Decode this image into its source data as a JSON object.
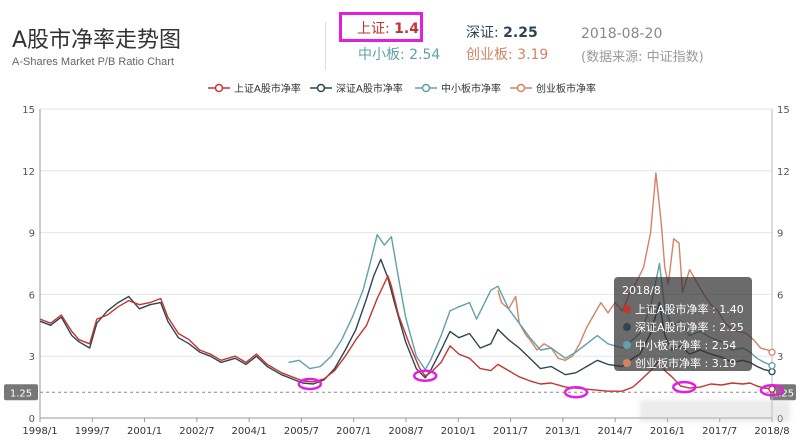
{
  "header": {
    "title": "A股市净率走势图",
    "subtitle": "A-Shares Market P/B Ratio Chart",
    "date": "2018-08-20",
    "source": "(数据来源: 中证指数)"
  },
  "stats": [
    {
      "label": "上证",
      "value": "1.4",
      "color": "#c23531"
    },
    {
      "label": "深证",
      "value": "2.25",
      "color": "#2f4554"
    },
    {
      "label": "中小板",
      "value": "2.54",
      "color": "#61a0a8"
    },
    {
      "label": "创业板",
      "value": "3.19",
      "color": "#d48265"
    }
  ],
  "tooltip": {
    "title": "2018/8",
    "rows": [
      {
        "name": "上证A股市净率",
        "value": "1.40",
        "color": "#c23531"
      },
      {
        "name": "深证A股市净率",
        "value": "2.25",
        "color": "#2f4554"
      },
      {
        "name": "中小板市净率",
        "value": "2.54",
        "color": "#61a0a8"
      },
      {
        "name": "创业板市净率",
        "value": "3.19",
        "color": "#d48265"
      }
    ]
  },
  "chart_data": {
    "type": "line",
    "ylim": [
      0,
      15
    ],
    "yticks": [
      0,
      3,
      6,
      9,
      12,
      15
    ],
    "ytick_labels": [
      "0",
      "3",
      "6",
      "9",
      "12",
      "15"
    ],
    "xrange": [
      1998.0,
      2018.62
    ],
    "xticks": [
      "1998/1",
      "1999/7",
      "2001/1",
      "2002/7",
      "2004/1",
      "2005/7",
      "2007/1",
      "2008/7",
      "2010/1",
      "2011/7",
      "2013/1",
      "2014/7",
      "2016/1",
      "2017/7",
      "2018/8"
    ],
    "reference_line": {
      "value": 1.25,
      "label": "1.25"
    },
    "legend": "top",
    "grid": true,
    "series": [
      {
        "name": "上证A股市净率",
        "color": "#c23531",
        "points": [
          [
            1998.0,
            4.8
          ],
          [
            1998.3,
            4.6
          ],
          [
            1998.6,
            5.0
          ],
          [
            1998.9,
            4.2
          ],
          [
            1999.1,
            3.8
          ],
          [
            1999.4,
            3.6
          ],
          [
            1999.6,
            4.8
          ],
          [
            1999.9,
            5.0
          ],
          [
            2000.2,
            5.4
          ],
          [
            2000.5,
            5.7
          ],
          [
            2000.8,
            5.5
          ],
          [
            2001.1,
            5.6
          ],
          [
            2001.4,
            5.8
          ],
          [
            2001.6,
            4.9
          ],
          [
            2001.9,
            4.1
          ],
          [
            2002.2,
            3.8
          ],
          [
            2002.5,
            3.3
          ],
          [
            2002.8,
            3.1
          ],
          [
            2003.1,
            2.8
          ],
          [
            2003.5,
            3.0
          ],
          [
            2003.8,
            2.7
          ],
          [
            2004.1,
            3.1
          ],
          [
            2004.4,
            2.6
          ],
          [
            2004.8,
            2.2
          ],
          [
            2005.1,
            2.0
          ],
          [
            2005.4,
            1.8
          ],
          [
            2005.7,
            1.75
          ],
          [
            2006.0,
            1.9
          ],
          [
            2006.3,
            2.3
          ],
          [
            2006.6,
            3.0
          ],
          [
            2006.9,
            3.8
          ],
          [
            2007.2,
            4.5
          ],
          [
            2007.5,
            5.8
          ],
          [
            2007.8,
            6.9
          ],
          [
            2007.9,
            6.4
          ],
          [
            2008.1,
            5.0
          ],
          [
            2008.4,
            3.6
          ],
          [
            2008.7,
            2.4
          ],
          [
            2008.85,
            2.05
          ],
          [
            2009.0,
            2.2
          ],
          [
            2009.3,
            2.7
          ],
          [
            2009.55,
            3.5
          ],
          [
            2009.8,
            3.1
          ],
          [
            2010.1,
            2.9
          ],
          [
            2010.4,
            2.4
          ],
          [
            2010.7,
            2.3
          ],
          [
            2010.9,
            2.6
          ],
          [
            2011.2,
            2.3
          ],
          [
            2011.5,
            2.0
          ],
          [
            2011.8,
            1.8
          ],
          [
            2012.1,
            1.65
          ],
          [
            2012.4,
            1.7
          ],
          [
            2012.8,
            1.5
          ],
          [
            2013.1,
            1.45
          ],
          [
            2013.4,
            1.4
          ],
          [
            2013.7,
            1.35
          ],
          [
            2014.0,
            1.3
          ],
          [
            2014.4,
            1.3
          ],
          [
            2014.7,
            1.5
          ],
          [
            2014.9,
            1.8
          ],
          [
            2015.2,
            2.3
          ],
          [
            2015.45,
            2.8
          ],
          [
            2015.6,
            2.3
          ],
          [
            2015.8,
            2.0
          ],
          [
            2016.05,
            1.55
          ],
          [
            2016.3,
            1.45
          ],
          [
            2016.6,
            1.5
          ],
          [
            2016.9,
            1.65
          ],
          [
            2017.2,
            1.6
          ],
          [
            2017.5,
            1.7
          ],
          [
            2017.8,
            1.65
          ],
          [
            2018.0,
            1.7
          ],
          [
            2018.2,
            1.55
          ],
          [
            2018.4,
            1.45
          ],
          [
            2018.62,
            1.4
          ]
        ]
      },
      {
        "name": "深证A股市净率",
        "color": "#2f4554",
        "points": [
          [
            1998.0,
            4.7
          ],
          [
            1998.3,
            4.5
          ],
          [
            1998.6,
            4.9
          ],
          [
            1998.9,
            4.0
          ],
          [
            1999.1,
            3.7
          ],
          [
            1999.4,
            3.4
          ],
          [
            1999.6,
            4.6
          ],
          [
            1999.9,
            5.2
          ],
          [
            2000.2,
            5.6
          ],
          [
            2000.5,
            5.9
          ],
          [
            2000.8,
            5.3
          ],
          [
            2001.1,
            5.5
          ],
          [
            2001.4,
            5.6
          ],
          [
            2001.6,
            4.7
          ],
          [
            2001.9,
            3.9
          ],
          [
            2002.2,
            3.6
          ],
          [
            2002.5,
            3.2
          ],
          [
            2002.8,
            3.0
          ],
          [
            2003.1,
            2.7
          ],
          [
            2003.5,
            2.9
          ],
          [
            2003.8,
            2.6
          ],
          [
            2004.1,
            3.0
          ],
          [
            2004.4,
            2.5
          ],
          [
            2004.8,
            2.1
          ],
          [
            2005.1,
            1.9
          ],
          [
            2005.4,
            1.7
          ],
          [
            2005.7,
            1.65
          ],
          [
            2006.0,
            1.85
          ],
          [
            2006.3,
            2.4
          ],
          [
            2006.6,
            3.3
          ],
          [
            2006.9,
            4.3
          ],
          [
            2007.2,
            5.8
          ],
          [
            2007.4,
            6.9
          ],
          [
            2007.6,
            7.7
          ],
          [
            2007.8,
            6.8
          ],
          [
            2008.0,
            5.5
          ],
          [
            2008.3,
            3.7
          ],
          [
            2008.6,
            2.4
          ],
          [
            2008.85,
            1.95
          ],
          [
            2009.0,
            2.3
          ],
          [
            2009.3,
            3.3
          ],
          [
            2009.55,
            4.2
          ],
          [
            2009.8,
            3.9
          ],
          [
            2010.1,
            4.1
          ],
          [
            2010.4,
            3.4
          ],
          [
            2010.7,
            3.6
          ],
          [
            2010.9,
            4.3
          ],
          [
            2011.2,
            3.8
          ],
          [
            2011.5,
            3.4
          ],
          [
            2011.8,
            2.9
          ],
          [
            2012.1,
            2.4
          ],
          [
            2012.4,
            2.5
          ],
          [
            2012.8,
            2.1
          ],
          [
            2013.1,
            2.2
          ],
          [
            2013.4,
            2.5
          ],
          [
            2013.7,
            2.8
          ],
          [
            2014.0,
            2.6
          ],
          [
            2014.4,
            2.5
          ],
          [
            2014.7,
            2.9
          ],
          [
            2014.9,
            3.1
          ],
          [
            2015.2,
            4.1
          ],
          [
            2015.45,
            5.6
          ],
          [
            2015.6,
            4.0
          ],
          [
            2015.8,
            3.3
          ],
          [
            2016.05,
            3.5
          ],
          [
            2016.3,
            3.1
          ],
          [
            2016.6,
            3.3
          ],
          [
            2016.9,
            3.1
          ],
          [
            2017.2,
            2.95
          ],
          [
            2017.5,
            2.7
          ],
          [
            2017.8,
            2.8
          ],
          [
            2018.0,
            2.7
          ],
          [
            2018.2,
            2.5
          ],
          [
            2018.4,
            2.35
          ],
          [
            2018.62,
            2.25
          ]
        ]
      },
      {
        "name": "中小板市净率",
        "color": "#61a0a8",
        "points": [
          [
            2005.0,
            2.7
          ],
          [
            2005.3,
            2.8
          ],
          [
            2005.6,
            2.4
          ],
          [
            2005.9,
            2.5
          ],
          [
            2006.2,
            3.0
          ],
          [
            2006.5,
            3.8
          ],
          [
            2006.8,
            4.9
          ],
          [
            2007.1,
            6.2
          ],
          [
            2007.3,
            7.5
          ],
          [
            2007.5,
            8.9
          ],
          [
            2007.7,
            8.4
          ],
          [
            2007.9,
            8.8
          ],
          [
            2008.1,
            6.8
          ],
          [
            2008.3,
            4.9
          ],
          [
            2008.6,
            3.0
          ],
          [
            2008.85,
            2.35
          ],
          [
            2009.0,
            2.8
          ],
          [
            2009.3,
            4.0
          ],
          [
            2009.55,
            5.2
          ],
          [
            2009.8,
            5.4
          ],
          [
            2010.1,
            5.6
          ],
          [
            2010.3,
            4.8
          ],
          [
            2010.5,
            5.5
          ],
          [
            2010.7,
            6.2
          ],
          [
            2010.9,
            6.4
          ],
          [
            2011.2,
            5.3
          ],
          [
            2011.5,
            4.6
          ],
          [
            2011.8,
            3.9
          ],
          [
            2012.1,
            3.3
          ],
          [
            2012.4,
            3.4
          ],
          [
            2012.8,
            2.9
          ],
          [
            2013.1,
            3.2
          ],
          [
            2013.4,
            3.6
          ],
          [
            2013.7,
            4.0
          ],
          [
            2014.0,
            3.6
          ],
          [
            2014.4,
            3.4
          ],
          [
            2014.7,
            3.8
          ],
          [
            2014.9,
            4.1
          ],
          [
            2015.2,
            5.4
          ],
          [
            2015.45,
            7.5
          ],
          [
            2015.6,
            5.3
          ],
          [
            2015.8,
            4.5
          ],
          [
            2016.05,
            4.7
          ],
          [
            2016.3,
            4.0
          ],
          [
            2016.6,
            4.2
          ],
          [
            2016.9,
            3.9
          ],
          [
            2017.2,
            3.7
          ],
          [
            2017.5,
            3.3
          ],
          [
            2017.8,
            3.4
          ],
          [
            2018.0,
            3.2
          ],
          [
            2018.2,
            2.9
          ],
          [
            2018.4,
            2.7
          ],
          [
            2018.62,
            2.54
          ]
        ]
      },
      {
        "name": "创业板市净率",
        "color": "#d48265",
        "points": [
          [
            2010.9,
            6.2
          ],
          [
            2011.0,
            5.6
          ],
          [
            2011.2,
            5.3
          ],
          [
            2011.4,
            5.9
          ],
          [
            2011.5,
            4.6
          ],
          [
            2011.7,
            4.0
          ],
          [
            2011.8,
            3.8
          ],
          [
            2012.0,
            3.3
          ],
          [
            2012.2,
            3.6
          ],
          [
            2012.4,
            3.4
          ],
          [
            2012.6,
            2.9
          ],
          [
            2012.8,
            2.8
          ],
          [
            2013.0,
            3.0
          ],
          [
            2013.2,
            3.6
          ],
          [
            2013.4,
            4.4
          ],
          [
            2013.6,
            5.0
          ],
          [
            2013.8,
            5.6
          ],
          [
            2014.0,
            5.1
          ],
          [
            2014.2,
            5.6
          ],
          [
            2014.4,
            5.2
          ],
          [
            2014.6,
            6.0
          ],
          [
            2014.8,
            6.6
          ],
          [
            2015.0,
            7.3
          ],
          [
            2015.2,
            9.0
          ],
          [
            2015.35,
            11.9
          ],
          [
            2015.5,
            9.5
          ],
          [
            2015.6,
            7.3
          ],
          [
            2015.7,
            6.5
          ],
          [
            2015.85,
            8.7
          ],
          [
            2016.0,
            8.5
          ],
          [
            2016.1,
            6.1
          ],
          [
            2016.3,
            7.2
          ],
          [
            2016.5,
            6.6
          ],
          [
            2016.7,
            6.0
          ],
          [
            2016.9,
            5.5
          ],
          [
            2017.1,
            5.2
          ],
          [
            2017.3,
            4.6
          ],
          [
            2017.5,
            4.3
          ],
          [
            2017.7,
            4.2
          ],
          [
            2017.9,
            4.1
          ],
          [
            2018.1,
            3.8
          ],
          [
            2018.3,
            3.4
          ],
          [
            2018.5,
            3.3
          ],
          [
            2018.62,
            3.19
          ]
        ]
      }
    ],
    "highlight_circles": [
      [
        2005.6,
        1.65
      ],
      [
        2008.85,
        2.05
      ],
      [
        2013.1,
        1.25
      ],
      [
        2016.15,
        1.5
      ],
      [
        2018.62,
        1.35
      ]
    ]
  }
}
